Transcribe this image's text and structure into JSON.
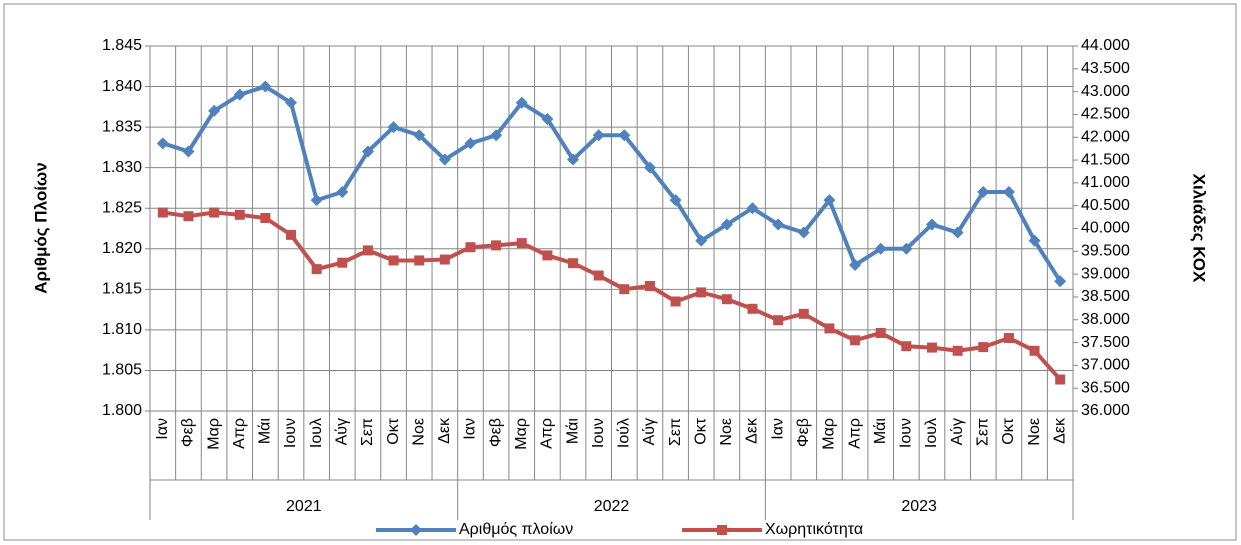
{
  "chart_data": {
    "type": "line",
    "y_label": "Αριθμός Πλοίων",
    "y2_label": "Χιλιάδες ΚΟΧ",
    "categories": [
      "Ιαν",
      "Φεβ",
      "Μαρ",
      "Απρ",
      "Μάι",
      "Ιουν",
      "Ιουλ",
      "Αύγ",
      "Σεπ",
      "Οκτ",
      "Νοε",
      "Δεκ",
      "Ιαν",
      "Φεβ",
      "Μαρ",
      "Απρ",
      "Μάι",
      "Ιουν",
      "Ιούλ",
      "Αύγ",
      "Σεπ",
      "Οκτ",
      "Νοε",
      "Δεκ",
      "Ιαν",
      "Φεβ",
      "Μαρ",
      "Απρ",
      "Μάι",
      "Ιουν",
      "Ιουλ",
      "Αύγ",
      "Σεπ",
      "Οκτ",
      "Νοε",
      "Δεκ"
    ],
    "category_groups": [
      "2021",
      "2022",
      "2023"
    ],
    "series": [
      {
        "name": "Αριθμός πλοίων",
        "color": "#4f81bd",
        "marker": "diamond",
        "values": [
          1833,
          1832,
          1837,
          1839,
          1840,
          1838,
          1826,
          1827,
          1832,
          1835,
          1834,
          1831,
          1833,
          1834,
          1838,
          1836,
          1831,
          1834,
          1834,
          1830,
          1826,
          1821,
          1823,
          1825,
          1823,
          1822,
          1826,
          1818,
          1820,
          1820,
          1823,
          1822,
          1827,
          1827,
          1821,
          1816
        ]
      },
      {
        "name": "Χωρητικότητα",
        "color": "#c0504d",
        "marker": "square",
        "axis": "y2",
        "values": [
          40350,
          40270,
          40350,
          40300,
          40230,
          39860,
          39110,
          39250,
          39520,
          39300,
          39300,
          39320,
          39590,
          39630,
          39680,
          39410,
          39240,
          38970,
          38670,
          38740,
          38400,
          38600,
          38450,
          38240,
          37990,
          38130,
          37810,
          37550,
          37710,
          37420,
          37390,
          37320,
          37400,
          37600,
          37320,
          36690
        ]
      }
    ],
    "ylim": [
      1800,
      1845
    ],
    "yticks": [
      {
        "value": 1800,
        "label": "1.800"
      },
      {
        "value": 1805,
        "label": "1.805"
      },
      {
        "value": 1810,
        "label": "1.810"
      },
      {
        "value": 1815,
        "label": "1.815"
      },
      {
        "value": 1820,
        "label": "1.820"
      },
      {
        "value": 1825,
        "label": "1.825"
      },
      {
        "value": 1830,
        "label": "1.830"
      },
      {
        "value": 1835,
        "label": "1.835"
      },
      {
        "value": 1840,
        "label": "1.840"
      },
      {
        "value": 1845,
        "label": "1.845"
      }
    ],
    "y2lim": [
      36000,
      44000
    ],
    "y2ticks": [
      {
        "value": 36000,
        "label": "36.000"
      },
      {
        "value": 36500,
        "label": "36.500"
      },
      {
        "value": 37000,
        "label": "37.000"
      },
      {
        "value": 37500,
        "label": "37.500"
      },
      {
        "value": 38000,
        "label": "38.000"
      },
      {
        "value": 38500,
        "label": "38.500"
      },
      {
        "value": 39000,
        "label": "39.000"
      },
      {
        "value": 39500,
        "label": "39.500"
      },
      {
        "value": 40000,
        "label": "40.000"
      },
      {
        "value": 40500,
        "label": "40.500"
      },
      {
        "value": 41000,
        "label": "41.000"
      },
      {
        "value": 41500,
        "label": "41.500"
      },
      {
        "value": 42000,
        "label": "42.000"
      },
      {
        "value": 42500,
        "label": "42.500"
      },
      {
        "value": 43000,
        "label": "43.000"
      },
      {
        "value": 43500,
        "label": "43.500"
      },
      {
        "value": 44000,
        "label": "44.000"
      }
    ],
    "grid": true,
    "legend": "bottom"
  }
}
